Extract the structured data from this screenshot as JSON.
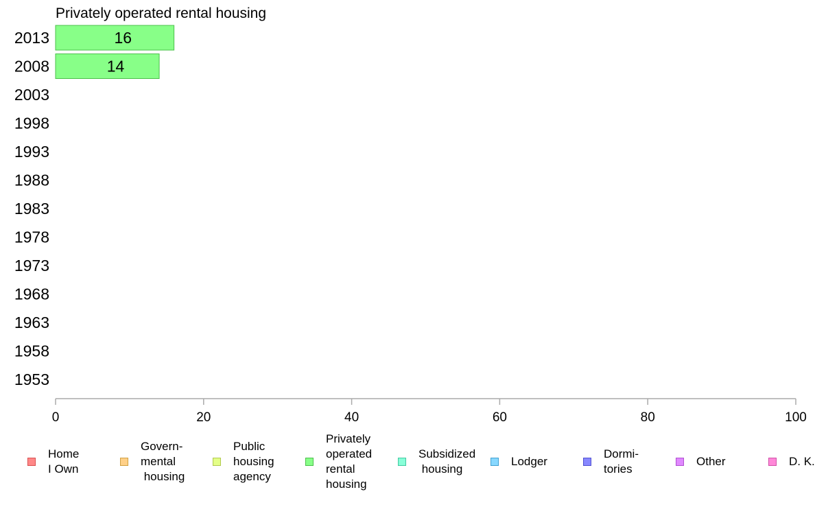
{
  "chart_data": {
    "type": "bar",
    "orientation": "horizontal",
    "title": "Privately operated rental housing",
    "categories": [
      "2013",
      "2008",
      "2003",
      "1998",
      "1993",
      "1988",
      "1983",
      "1978",
      "1973",
      "1968",
      "1963",
      "1958",
      "1953"
    ],
    "series": [
      {
        "name": "Privately operated rental housing",
        "values": [
          16,
          14,
          null,
          null,
          null,
          null,
          null,
          null,
          null,
          null,
          null,
          null,
          null
        ],
        "color": "#88ff88",
        "stroke": "#4bbf4b"
      }
    ],
    "xlim": [
      0,
      100
    ],
    "xticks": [
      "0",
      "20",
      "40",
      "60",
      "80",
      "100"
    ],
    "grid": false,
    "legend_position": "bottom"
  },
  "legend": [
    {
      "label": "Home\nI Own",
      "color": "#ff8888",
      "stroke": "#d85050"
    },
    {
      "label": "Govern-\nmental\n housing",
      "color": "#ffd088",
      "stroke": "#d0a040"
    },
    {
      "label": "Public\nhousing\nagency",
      "color": "#e4ff88",
      "stroke": "#b0c850"
    },
    {
      "label": "Privately\noperated\nrental\nhousing",
      "color": "#88ff88",
      "stroke": "#4bbf4b"
    },
    {
      "label": "Subsidized\n housing",
      "color": "#88ffd8",
      "stroke": "#40c8a0"
    },
    {
      "label": "Lodger",
      "color": "#88d8ff",
      "stroke": "#40a0d0"
    },
    {
      "label": "Dormi-\ntories",
      "color": "#8888ff",
      "stroke": "#5050d0"
    },
    {
      "label": "Other",
      "color": "#e088ff",
      "stroke": "#b050d0"
    },
    {
      "label": "D. K.",
      "color": "#ff88d8",
      "stroke": "#d050a8"
    }
  ]
}
